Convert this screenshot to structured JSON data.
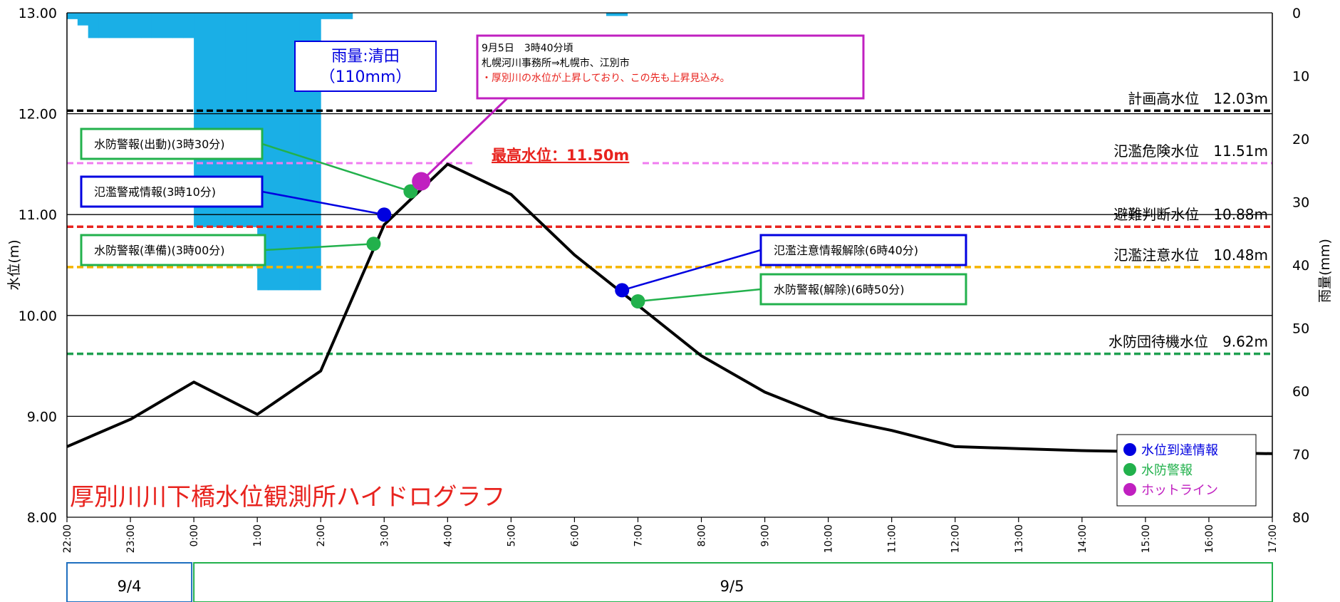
{
  "chart_data": {
    "type": "line",
    "title": "厚別川川下橋水位観測所ハイドログラフ",
    "ylabel_left": "水位(m)",
    "ylabel_right": "雨量(mm)",
    "y_left_range": [
      8.0,
      13.0
    ],
    "y_left_ticks": [
      "13.00",
      "12.00",
      "11.00",
      "10.00",
      "9.00",
      "8.00"
    ],
    "y_right_range": [
      0,
      80
    ],
    "y_right_ticks": [
      "0",
      "10",
      "20",
      "30",
      "40",
      "50",
      "60",
      "70",
      "80"
    ],
    "x_ticks": [
      "22:00",
      "23:00",
      "0:00",
      "1:00",
      "2:00",
      "3:00",
      "4:00",
      "5:00",
      "6:00",
      "7:00",
      "8:00",
      "9:00",
      "10:00",
      "11:00",
      "12:00",
      "13:00",
      "14:00",
      "15:00",
      "16:00",
      "17:00"
    ],
    "dates": [
      "9/4",
      "9/5"
    ],
    "grid": "horizontal",
    "legend_placement": "bottom-right",
    "water_level": {
      "x": [
        "9/4 22:00",
        "9/4 23:00",
        "9/5 0:00",
        "9/5 1:00",
        "9/5 2:00",
        "9/5 3:00",
        "9/5 4:00",
        "9/5 5:00",
        "9/5 6:00",
        "9/5 7:00",
        "9/5 8:00",
        "9/5 9:00",
        "9/5 10:00",
        "9/5 11:00",
        "9/5 12:00",
        "9/5 13:00",
        "9/5 14:00",
        "9/5 15:00",
        "9/5 16:00",
        "9/5 17:00"
      ],
      "values": [
        8.7,
        8.97,
        9.34,
        9.02,
        9.45,
        10.9,
        11.5,
        11.2,
        10.6,
        10.1,
        9.6,
        9.24,
        8.99,
        8.86,
        8.7,
        8.68,
        8.66,
        8.65,
        8.64,
        8.63
      ]
    },
    "rainfall_mm": {
      "station_label": "雨量:清田",
      "total_label": "（110mm）",
      "bars": [
        {
          "start": "9/4 22:00",
          "end": "9/4 23:00",
          "values": [
            1.0,
            2.0,
            4.0,
            4.0,
            4.0,
            4.0
          ]
        },
        {
          "start": "9/4 23:00",
          "end": "9/5 0:00",
          "values": [
            4.0,
            4.0,
            4.0,
            4.0,
            4.0,
            4.0
          ]
        },
        {
          "start": "9/5 0:00",
          "end": "9/5 1:00",
          "values": [
            34.0,
            34.0,
            34.0,
            34.0,
            34.0,
            34.0
          ]
        },
        {
          "start": "9/5 1:00",
          "end": "9/5 2:00",
          "values": [
            44.0,
            44.0,
            44.0,
            44.0,
            44.0,
            44.0
          ]
        },
        {
          "start": "9/5 2:00",
          "end": "9/5 3:00",
          "values": [
            1.0,
            1.0,
            1.0,
            0,
            0,
            0
          ]
        },
        {
          "start": "9/5 6:00",
          "end": "9/5 7:00",
          "values": [
            0,
            0,
            0,
            0.5,
            0.5,
            0
          ]
        }
      ]
    },
    "thresholds": [
      {
        "label": "計画高水位　12.03m",
        "value": 12.03,
        "color": "#000000"
      },
      {
        "label": "氾濫危険水位　11.51m",
        "value": 11.51,
        "color": "#f07cf0"
      },
      {
        "label": "避難判断水位　10.88m",
        "value": 10.88,
        "color": "#e8231e"
      },
      {
        "label": "氾濫注意水位　10.48m",
        "value": 10.48,
        "color": "#f5b400"
      },
      {
        "label": "水防団待機水位　9.62m",
        "value": 9.62,
        "color": "#1ea050"
      }
    ],
    "peak_label": "最高水位：11.50m",
    "events": [
      {
        "label": "水防警報(準備)(3時00分)",
        "time": "9/5 2:50",
        "value": 10.71,
        "kind": "flood_warning",
        "color": "#22b14c"
      },
      {
        "label": "氾濫警戒情報(3時10分)",
        "time": "9/5 3:00",
        "value": 11.0,
        "kind": "level_info",
        "color": "#0000e0"
      },
      {
        "label": "水防警報(出動)(3時30分)",
        "time": "9/5 3:25",
        "value": 11.23,
        "kind": "flood_warning",
        "color": "#22b14c"
      },
      {
        "label": "氾濫注意情報解除(6時40分)",
        "time": "9/5 6:45",
        "value": 10.25,
        "kind": "level_info",
        "color": "#0000e0"
      },
      {
        "label": "水防警報(解除)(6時50分)",
        "time": "9/5 7:00",
        "value": 10.14,
        "kind": "flood_warning",
        "color": "#22b14c"
      }
    ],
    "hotline": {
      "time": "9/5 3:35",
      "value": 11.33,
      "color": "#c020c0",
      "lines": [
        "9月5日　3時40分頃",
        "札幌河川事務所⇒札幌市、江別市",
        "・厚別川の水位が上昇しており、この先も上昇見込み。"
      ]
    },
    "legend": [
      {
        "label": "水位到達情報",
        "color": "#0000e0"
      },
      {
        "label": "水防警報",
        "color": "#22b14c"
      },
      {
        "label": "ホットライン",
        "color": "#c020c0"
      }
    ],
    "colors": {
      "rain": "#1aafe6",
      "level_line": "#000000",
      "title": "#e8231e"
    }
  }
}
